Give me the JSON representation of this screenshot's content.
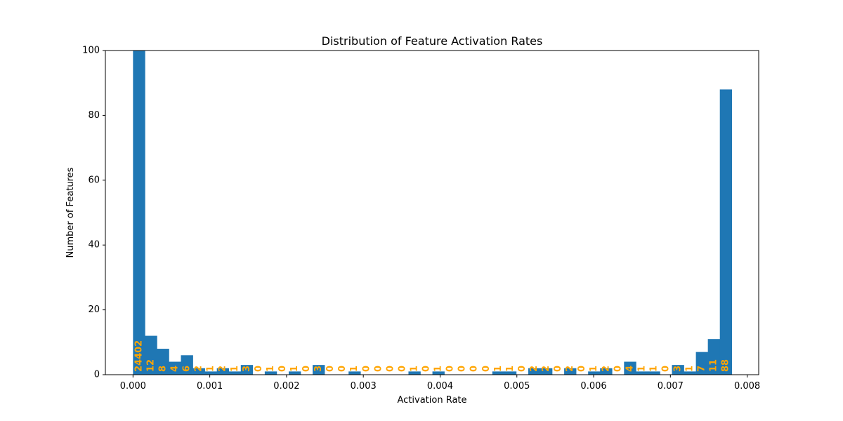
{
  "chart_data": {
    "type": "bar",
    "title": "Distribution of Feature Activation Rates",
    "xlabel": "Activation Rate",
    "ylabel": "Number of Features",
    "xlim": [
      -0.00036,
      0.00815
    ],
    "ylim": [
      0,
      100
    ],
    "x_ticks": [
      0.0,
      0.001,
      0.002,
      0.003,
      0.004,
      0.005,
      0.006,
      0.007,
      0.008
    ],
    "x_tick_labels": [
      "0.000",
      "0.001",
      "0.002",
      "0.003",
      "0.004",
      "0.005",
      "0.006",
      "0.007",
      "0.008"
    ],
    "y_ticks": [
      0,
      20,
      40,
      60,
      80,
      100
    ],
    "y_tick_labels": [
      "0",
      "20",
      "40",
      "60",
      "80",
      "100"
    ],
    "grid": false,
    "bin_start": 0.0,
    "bin_width": 0.000156,
    "bar_color": "#1f77b4",
    "label_color": "#ffa500",
    "values": [
      24402,
      12,
      8,
      4,
      6,
      2,
      1,
      2,
      1,
      3,
      0,
      1,
      0,
      1,
      0,
      3,
      0,
      0,
      1,
      0,
      0,
      0,
      0,
      1,
      0,
      1,
      0,
      0,
      0,
      0,
      1,
      1,
      0,
      2,
      2,
      0,
      2,
      0,
      1,
      2,
      0,
      4,
      1,
      1,
      0,
      3,
      1,
      7,
      11,
      88
    ],
    "bar_labels": [
      "24402",
      "12",
      "8",
      "4",
      "6",
      "2",
      "1",
      "2",
      "1",
      "3",
      "0",
      "1",
      "0",
      "1",
      "0",
      "3",
      "0",
      "0",
      "1",
      "0",
      "0",
      "0",
      "0",
      "1",
      "0",
      "1",
      "0",
      "0",
      "0",
      "0",
      "1",
      "1",
      "0",
      "2",
      "2",
      "0",
      "2",
      "0",
      "1",
      "2",
      "0",
      "4",
      "1",
      "1",
      "0",
      "3",
      "1",
      "7",
      "11",
      "88"
    ]
  }
}
